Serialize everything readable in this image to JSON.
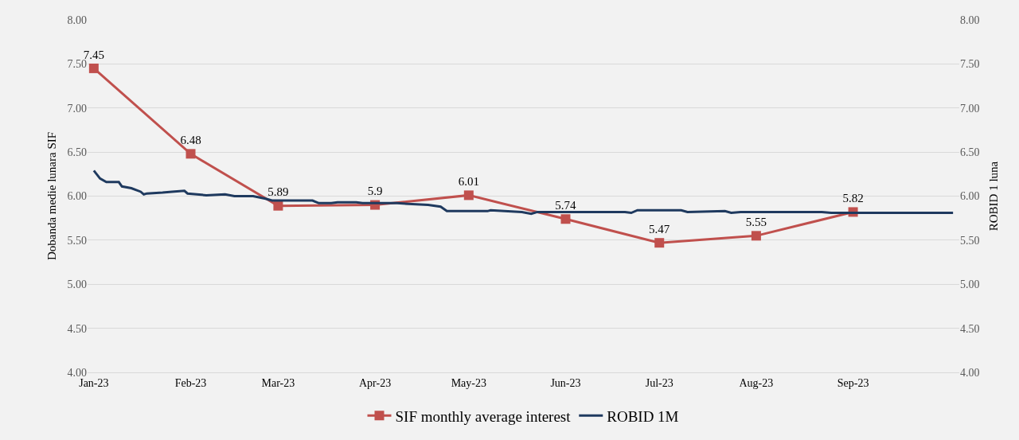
{
  "chart_data": {
    "type": "line",
    "ylabel": "Dobanda medie lunara SIF",
    "y2label": "ROBID 1 luna",
    "xlim": [
      "2022-12-30",
      "2023-10-05"
    ],
    "xticks": [
      {
        "value": "2023-01-01",
        "label": "Jan-23"
      },
      {
        "value": "2023-02-01",
        "label": "Feb-23"
      },
      {
        "value": "2023-03-01",
        "label": "Mar-23"
      },
      {
        "value": "2023-04-01",
        "label": "Apr-23"
      },
      {
        "value": "2023-05-01",
        "label": "May-23"
      },
      {
        "value": "2023-06-01",
        "label": "Jun-23"
      },
      {
        "value": "2023-07-01",
        "label": "Jul-23"
      },
      {
        "value": "2023-08-01",
        "label": "Aug-23"
      },
      {
        "value": "2023-09-01",
        "label": "Sep-23"
      }
    ],
    "ylim": [
      4,
      8
    ],
    "yticks": [
      {
        "value": 4,
        "label": "4.00"
      },
      {
        "value": 4.5,
        "label": "4.50"
      },
      {
        "value": 5,
        "label": "5.00"
      },
      {
        "value": 5.5,
        "label": "5.50"
      },
      {
        "value": 6,
        "label": "6.00"
      },
      {
        "value": 6.5,
        "label": "6.50"
      },
      {
        "value": 7,
        "label": "7.00"
      },
      {
        "value": 7.5,
        "label": "7.50"
      },
      {
        "value": 8,
        "label": "8.00"
      }
    ],
    "y2lim": [
      4,
      8
    ],
    "y2ticks": [
      {
        "value": 4,
        "label": "4.00"
      },
      {
        "value": 4.5,
        "label": "4.50"
      },
      {
        "value": 5,
        "label": "5.00"
      },
      {
        "value": 5.5,
        "label": "5.50"
      },
      {
        "value": 6,
        "label": "6.00"
      },
      {
        "value": 6.5,
        "label": "6.50"
      },
      {
        "value": 7,
        "label": "7.00"
      },
      {
        "value": 7.5,
        "label": "7.50"
      },
      {
        "value": 8,
        "label": "8.00"
      }
    ],
    "grid": "y",
    "legend": "bottom",
    "series": [
      {
        "name": "SIF monthly average interest",
        "color": "#c0504d",
        "marker": "square",
        "data_labels": true,
        "x": [
          "2023-01-01",
          "2023-02-01",
          "2023-03-01",
          "2023-04-01",
          "2023-05-01",
          "2023-06-01",
          "2023-07-01",
          "2023-08-01",
          "2023-09-01"
        ],
        "values": [
          7.45,
          6.48,
          5.89,
          5.9,
          6.01,
          5.74,
          5.47,
          5.55,
          5.82
        ]
      },
      {
        "name": "ROBID 1M",
        "color": "#1f3a5f",
        "marker": "none",
        "axis": "y2",
        "x": [
          "2023-01-01",
          "2023-01-03",
          "2023-01-05",
          "2023-01-09",
          "2023-01-10",
          "2023-01-13",
          "2023-01-16",
          "2023-01-17",
          "2023-01-18",
          "2023-01-23",
          "2023-01-26",
          "2023-01-30",
          "2023-01-31",
          "2023-02-06",
          "2023-02-12",
          "2023-02-15",
          "2023-02-21",
          "2023-02-25",
          "2023-02-27",
          "2023-03-12",
          "2023-03-14",
          "2023-03-18",
          "2023-03-20",
          "2023-03-26",
          "2023-03-28",
          "2023-04-08",
          "2023-04-18",
          "2023-04-22",
          "2023-04-24",
          "2023-05-07",
          "2023-05-08",
          "2023-05-18",
          "2023-05-21",
          "2023-05-23",
          "2023-06-20",
          "2023-06-22",
          "2023-06-24",
          "2023-07-08",
          "2023-07-10",
          "2023-07-22",
          "2023-07-24",
          "2023-07-27",
          "2023-08-22",
          "2023-08-25",
          "2023-10-03"
        ],
        "values": [
          6.29,
          6.2,
          6.16,
          6.16,
          6.11,
          6.09,
          6.05,
          6.02,
          6.03,
          6.04,
          6.05,
          6.06,
          6.03,
          6.01,
          6.02,
          6.0,
          6.0,
          5.97,
          5.95,
          5.95,
          5.92,
          5.92,
          5.93,
          5.93,
          5.92,
          5.92,
          5.9,
          5.88,
          5.83,
          5.83,
          5.84,
          5.82,
          5.8,
          5.82,
          5.82,
          5.81,
          5.84,
          5.84,
          5.82,
          5.83,
          5.81,
          5.82,
          5.82,
          5.81,
          5.81
        ]
      }
    ]
  }
}
